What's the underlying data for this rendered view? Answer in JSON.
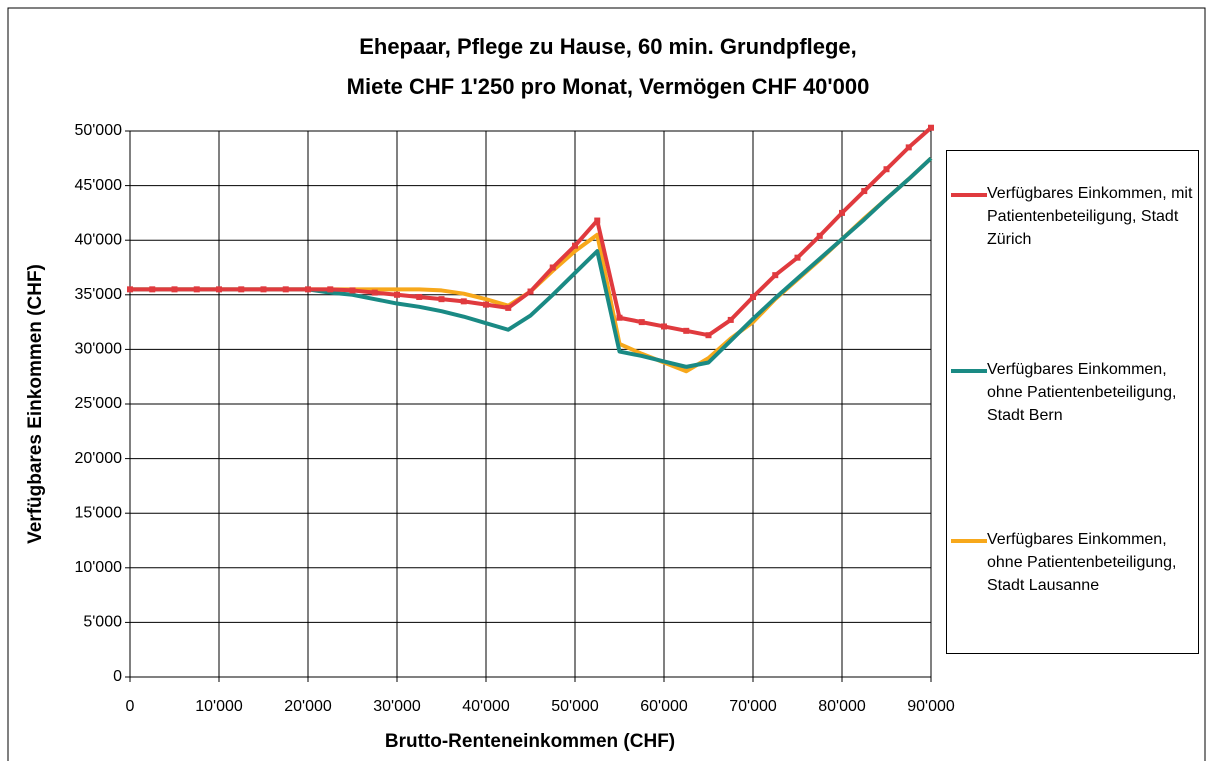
{
  "chart_data": {
    "type": "line",
    "title": [
      "Ehepaar, Pflege zu Hause, 60 min. Grundpflege,",
      "Miete CHF 1'250 pro Monat, Vermögen CHF 40'000"
    ],
    "x_label": "Brutto-Renteneinkommen (CHF)",
    "y_label": "Verfügbares Einkommen (CHF)",
    "x": [
      0,
      2500,
      5000,
      7500,
      10000,
      12500,
      15000,
      17500,
      20000,
      22500,
      25000,
      27500,
      30000,
      32500,
      35000,
      37500,
      40000,
      42500,
      45000,
      47500,
      50000,
      52500,
      55000,
      57500,
      60000,
      62500,
      65000,
      67500,
      70000,
      72500,
      75000,
      77500,
      80000,
      82500,
      85000,
      87500,
      90000
    ],
    "series": [
      {
        "name": "Verfügbares Einkommen, mit Patientenbeteiligung, Stadt Zürich",
        "color": "#e03a3e",
        "marker": true,
        "values": [
          35500,
          35500,
          35500,
          35500,
          35500,
          35500,
          35500,
          35500,
          35500,
          35500,
          35400,
          35200,
          35000,
          34800,
          34600,
          34400,
          34100,
          33800,
          35300,
          37500,
          39500,
          41800,
          32900,
          32500,
          32100,
          31700,
          31300,
          32700,
          34800,
          36800,
          38400,
          40400,
          42500,
          44500,
          46500,
          48500,
          50300
        ]
      },
      {
        "name": "Verfügbares Einkommen, ohne Patientenbeteiligung, Stadt Bern",
        "color": "#1a8a84",
        "marker": false,
        "values": [
          35500,
          35500,
          35500,
          35500,
          35500,
          35500,
          35500,
          35500,
          35500,
          35200,
          35000,
          34600,
          34200,
          33900,
          33500,
          33000,
          32400,
          31800,
          33100,
          35000,
          37000,
          39000,
          29800,
          29400,
          28900,
          28400,
          28800,
          30800,
          32800,
          34700,
          36500,
          38300,
          40100,
          41900,
          43800,
          45600,
          47500
        ]
      },
      {
        "name": "Verfügbares Einkommen, ohne Patientenbeteiligung, Stadt Lausanne",
        "color": "#f7a81b",
        "marker": false,
        "values": [
          35500,
          35500,
          35500,
          35500,
          35500,
          35500,
          35500,
          35500,
          35500,
          35500,
          35500,
          35500,
          35500,
          35500,
          35400,
          35100,
          34600,
          34000,
          35300,
          37200,
          39000,
          40500,
          30500,
          29600,
          28800,
          28000,
          29200,
          31000,
          32500,
          34600,
          36400,
          38200,
          40100,
          42000,
          43800,
          45600,
          47500
        ]
      }
    ],
    "xlim": [
      0,
      90000
    ],
    "xticks": [
      0,
      {
        "value": 10000,
        "label": "10'000"
      },
      {
        "value": 20000,
        "label": "20'000"
      },
      {
        "value": 30000,
        "label": "30'000"
      },
      {
        "value": 40000,
        "label": "40'000"
      },
      {
        "value": 50000,
        "label": "50'000"
      },
      {
        "value": 60000,
        "label": "60'000"
      },
      {
        "value": 70000,
        "label": "70'000"
      },
      {
        "value": 80000,
        "label": "80'000"
      },
      {
        "value": 90000,
        "label": "90'000"
      }
    ],
    "ylim": [
      0,
      50000
    ],
    "yticks": [
      0,
      {
        "value": 5000,
        "label": "5'000"
      },
      {
        "value": 10000,
        "label": "10'000"
      },
      {
        "value": 15000,
        "label": "15'000"
      },
      {
        "value": 20000,
        "label": "20'000"
      },
      {
        "value": 25000,
        "label": "25'000"
      },
      {
        "value": 30000,
        "label": "30'000"
      },
      {
        "value": 35000,
        "label": "35'000"
      },
      {
        "value": 40000,
        "label": "40'000"
      },
      {
        "value": 45000,
        "label": "45'000"
      },
      {
        "value": 50000,
        "label": "50'000"
      }
    ],
    "grid": true,
    "legend": "right"
  }
}
